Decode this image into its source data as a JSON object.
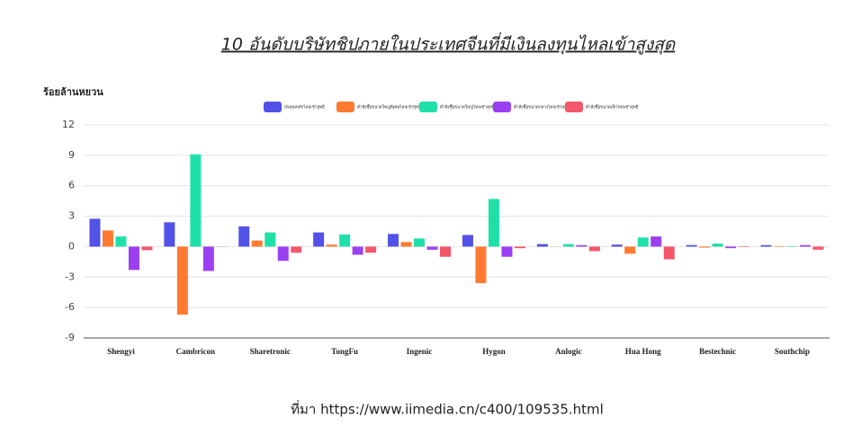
{
  "chart_data": {
    "type": "bar",
    "title": "10 อันดับบริษัทชิปภายในประเทศจีนที่มีเงินลงทุนไหลเข้าสูงสุด",
    "y_label": "ร้อยล้านหยวน",
    "source": "ที่มา  https://www.iimedia.cn/c400/109535.html",
    "categories": [
      "Shengyi",
      "Cambricon",
      "Sharetronic",
      "TongFu",
      "Ingenic",
      "Hygon",
      "Anlogic",
      "Hua Hong",
      "Bestechnic",
      "Southchip"
    ],
    "series": [
      {
        "name": "เงินทุนหลักไหลเข้าสุทธิ",
        "color": "#5252e8",
        "values": [
          2.75,
          2.4,
          2.0,
          1.4,
          1.25,
          1.15,
          0.25,
          0.2,
          0.15,
          0.15
        ]
      },
      {
        "name": "คำสั่งซื้อขนาดใหญ่พิเศษไหลเข้าสุทธิ",
        "color": "#ff7a30",
        "values": [
          1.6,
          -6.7,
          0.6,
          0.2,
          0.45,
          -3.6,
          0.02,
          -0.7,
          -0.1,
          0.05
        ]
      },
      {
        "name": "คำสั่งซื้อขนาดใหญ่ไหลเข้าสุทธิ",
        "color": "#1fe0a8",
        "values": [
          1.0,
          9.1,
          1.4,
          1.2,
          0.8,
          4.7,
          0.25,
          0.9,
          0.3,
          0.05
        ]
      },
      {
        "name": "คำสั่งซื้อขนาดกลางไหลเข้าสุทธิ",
        "color": "#9b40f0",
        "values": [
          -2.3,
          -2.4,
          -1.4,
          -0.8,
          -0.3,
          -1.0,
          0.15,
          1.0,
          -0.15,
          0.15
        ]
      },
      {
        "name": "คำสั่งซื้อขนาดเล็กไหลเข้าสุทธิ",
        "color": "#f4566a",
        "values": [
          -0.35,
          0.02,
          -0.6,
          -0.6,
          -1.0,
          -0.15,
          -0.45,
          -1.25,
          -0.05,
          -0.3
        ]
      }
    ],
    "ylim": [
      -9,
      12
    ],
    "yticks": [
      -9,
      -6,
      -3,
      0,
      3,
      6,
      9,
      12
    ],
    "grid": true
  }
}
